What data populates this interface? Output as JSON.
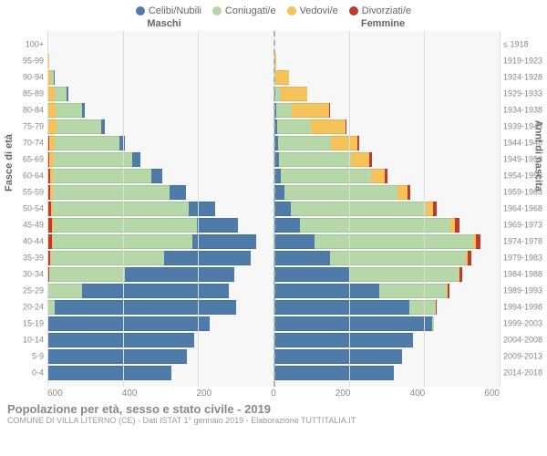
{
  "legend": {
    "items": [
      {
        "label": "Celibi/Nubili",
        "color": "#4f7ba8"
      },
      {
        "label": "Coniugati/e",
        "color": "#b6d7a8"
      },
      {
        "label": "Vedovi/e",
        "color": "#f6c35a"
      },
      {
        "label": "Divorziati/e",
        "color": "#c0392b"
      }
    ]
  },
  "gender": {
    "male": "Maschi",
    "female": "Femmine"
  },
  "axis": {
    "left_title": "Fasce di età",
    "right_title": "Anni di nascita",
    "x_ticks": [
      "600",
      "400",
      "200",
      "0",
      "200",
      "400",
      "600"
    ],
    "x_max": 600
  },
  "colors": {
    "celibi": "#4f7ba8",
    "coniugati": "#b6d7a8",
    "vedovi": "#f6c35a",
    "divorziati": "#c0392b",
    "bg": "#f7f7f7",
    "grid": "#dcdcdc"
  },
  "footer": {
    "title": "Popolazione per età, sesso e stato civile - 2019",
    "subtitle": "COMUNE DI VILLA LITERNO (CE) - Dati ISTAT 1° gennaio 2019 - Elaborazione TUTTITALIA.IT"
  },
  "bands": [
    {
      "age": "100+",
      "birth": "≤ 1918",
      "m": {
        "c": 0,
        "o": 0,
        "v": 2,
        "d": 0
      },
      "f": {
        "c": 0,
        "o": 0,
        "v": 3,
        "d": 0
      }
    },
    {
      "age": "95-99",
      "birth": "1919-1923",
      "m": {
        "c": 0,
        "o": 0,
        "v": 5,
        "d": 0
      },
      "f": {
        "c": 0,
        "o": 0,
        "v": 8,
        "d": 0
      }
    },
    {
      "age": "90-94",
      "birth": "1924-1928",
      "m": {
        "c": 2,
        "o": 6,
        "v": 10,
        "d": 0
      },
      "f": {
        "c": 2,
        "o": 4,
        "v": 35,
        "d": 0
      }
    },
    {
      "age": "85-89",
      "birth": "1929-1933",
      "m": {
        "c": 5,
        "o": 30,
        "v": 20,
        "d": 0
      },
      "f": {
        "c": 5,
        "o": 15,
        "v": 70,
        "d": 0
      }
    },
    {
      "age": "80-84",
      "birth": "1934-1938",
      "m": {
        "c": 8,
        "o": 70,
        "v": 20,
        "d": 2
      },
      "f": {
        "c": 8,
        "o": 40,
        "v": 100,
        "d": 3
      }
    },
    {
      "age": "75-79",
      "birth": "1939-1943",
      "m": {
        "c": 10,
        "o": 120,
        "v": 20,
        "d": 3
      },
      "f": {
        "c": 10,
        "o": 90,
        "v": 90,
        "d": 3
      }
    },
    {
      "age": "70-74",
      "birth": "1944-1948",
      "m": {
        "c": 15,
        "o": 170,
        "v": 15,
        "d": 5
      },
      "f": {
        "c": 12,
        "o": 140,
        "v": 70,
        "d": 5
      }
    },
    {
      "age": "65-69",
      "birth": "1949-1953",
      "m": {
        "c": 20,
        "o": 210,
        "v": 10,
        "d": 6
      },
      "f": {
        "c": 15,
        "o": 190,
        "v": 50,
        "d": 6
      }
    },
    {
      "age": "60-64",
      "birth": "1954-1958",
      "m": {
        "c": 30,
        "o": 260,
        "v": 8,
        "d": 7
      },
      "f": {
        "c": 20,
        "o": 240,
        "v": 35,
        "d": 7
      }
    },
    {
      "age": "55-59",
      "birth": "1959-1963",
      "m": {
        "c": 45,
        "o": 310,
        "v": 6,
        "d": 8
      },
      "f": {
        "c": 30,
        "o": 300,
        "v": 25,
        "d": 8
      }
    },
    {
      "age": "50-54",
      "birth": "1964-1968",
      "m": {
        "c": 70,
        "o": 360,
        "v": 5,
        "d": 10
      },
      "f": {
        "c": 45,
        "o": 360,
        "v": 18,
        "d": 10
      }
    },
    {
      "age": "45-49",
      "birth": "1969-1973",
      "m": {
        "c": 110,
        "o": 380,
        "v": 4,
        "d": 12
      },
      "f": {
        "c": 70,
        "o": 400,
        "v": 12,
        "d": 12
      }
    },
    {
      "age": "40-44",
      "birth": "1974-1978",
      "m": {
        "c": 170,
        "o": 370,
        "v": 3,
        "d": 12
      },
      "f": {
        "c": 110,
        "o": 420,
        "v": 8,
        "d": 12
      }
    },
    {
      "age": "35-39",
      "birth": "1979-1983",
      "m": {
        "c": 230,
        "o": 300,
        "v": 2,
        "d": 8
      },
      "f": {
        "c": 150,
        "o": 360,
        "v": 5,
        "d": 10
      }
    },
    {
      "age": "30-34",
      "birth": "1984-1988",
      "m": {
        "c": 290,
        "o": 200,
        "v": 1,
        "d": 5
      },
      "f": {
        "c": 200,
        "o": 290,
        "v": 3,
        "d": 8
      }
    },
    {
      "age": "25-29",
      "birth": "1989-1993",
      "m": {
        "c": 390,
        "o": 90,
        "v": 0,
        "d": 2
      },
      "f": {
        "c": 280,
        "o": 180,
        "v": 2,
        "d": 5
      }
    },
    {
      "age": "20-24",
      "birth": "1994-1998",
      "m": {
        "c": 480,
        "o": 20,
        "v": 0,
        "d": 0
      },
      "f": {
        "c": 360,
        "o": 70,
        "v": 0,
        "d": 2
      }
    },
    {
      "age": "15-19",
      "birth": "1999-2003",
      "m": {
        "c": 430,
        "o": 0,
        "v": 0,
        "d": 0
      },
      "f": {
        "c": 420,
        "o": 5,
        "v": 0,
        "d": 0
      }
    },
    {
      "age": "10-14",
      "birth": "2004-2008",
      "m": {
        "c": 390,
        "o": 0,
        "v": 0,
        "d": 0
      },
      "f": {
        "c": 370,
        "o": 0,
        "v": 0,
        "d": 0
      }
    },
    {
      "age": "5-9",
      "birth": "2009-2013",
      "m": {
        "c": 370,
        "o": 0,
        "v": 0,
        "d": 0
      },
      "f": {
        "c": 340,
        "o": 0,
        "v": 0,
        "d": 0
      }
    },
    {
      "age": "0-4",
      "birth": "2014-2018",
      "m": {
        "c": 330,
        "o": 0,
        "v": 0,
        "d": 0
      },
      "f": {
        "c": 320,
        "o": 0,
        "v": 0,
        "d": 0
      }
    }
  ]
}
